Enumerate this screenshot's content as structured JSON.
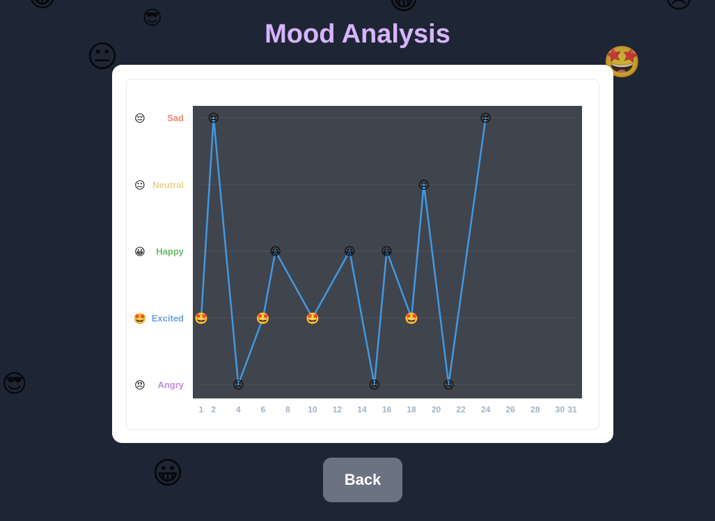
{
  "page": {
    "title": "Mood Analysis",
    "back_label": "Back"
  },
  "background_emojis": [
    {
      "name": "sunglasses-face-icon",
      "glyph": "😎"
    },
    {
      "name": "neutral-face-icon",
      "glyph": "😐"
    },
    {
      "name": "star-struck-face-icon",
      "glyph": "🤩"
    },
    {
      "name": "sunglasses-face-icon",
      "glyph": "😎"
    },
    {
      "name": "grinning-face-icon",
      "glyph": "😀"
    },
    {
      "name": "grinning-face-icon",
      "glyph": "😀"
    },
    {
      "name": "angry-face-icon",
      "glyph": "😠"
    },
    {
      "name": "grinning-face-icon",
      "glyph": "😀"
    }
  ],
  "colors": {
    "line": "#4299e1",
    "plot_bg": "#40444d",
    "title": "#d8b4fe"
  },
  "chart_data": {
    "type": "line",
    "xlim": [
      1,
      31
    ],
    "x_ticks": [
      1,
      2,
      4,
      6,
      8,
      10,
      12,
      14,
      16,
      18,
      20,
      22,
      24,
      26,
      28,
      30,
      31
    ],
    "moods": [
      {
        "label": "Sad",
        "emoji": "😔",
        "color": "#f08774",
        "level": 5
      },
      {
        "label": "Neutral",
        "emoji": "😐",
        "color": "#e8d48a",
        "level": 4
      },
      {
        "label": "Happy",
        "emoji": "😀",
        "color": "#68b868",
        "level": 3
      },
      {
        "label": "Excited",
        "emoji": "🤩",
        "color": "#6aa3e0",
        "level": 2
      },
      {
        "label": "Angry",
        "emoji": "😠",
        "color": "#c28be0",
        "level": 1
      }
    ],
    "points": [
      {
        "x": 1,
        "mood": "Excited"
      },
      {
        "x": 2,
        "mood": "Sad"
      },
      {
        "x": 4,
        "mood": "Angry"
      },
      {
        "x": 6,
        "mood": "Excited"
      },
      {
        "x": 7,
        "mood": "Happy"
      },
      {
        "x": 10,
        "mood": "Excited"
      },
      {
        "x": 13,
        "mood": "Happy"
      },
      {
        "x": 15,
        "mood": "Angry"
      },
      {
        "x": 16,
        "mood": "Happy"
      },
      {
        "x": 18,
        "mood": "Excited"
      },
      {
        "x": 19,
        "mood": "Neutral"
      },
      {
        "x": 21,
        "mood": "Angry"
      },
      {
        "x": 24,
        "mood": "Sad"
      }
    ]
  }
}
